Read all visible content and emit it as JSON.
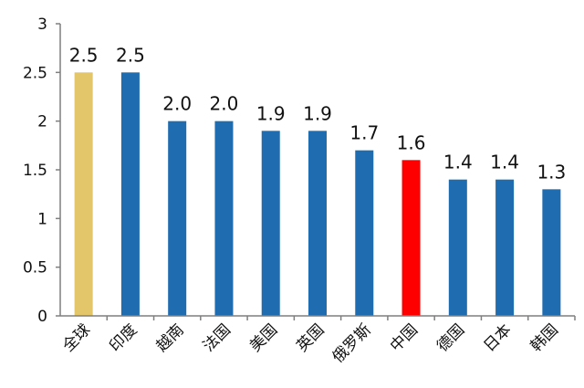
{
  "chart_data": {
    "type": "bar",
    "title": "",
    "xlabel": "",
    "ylabel": "",
    "ylim": [
      0,
      3
    ],
    "yticks": [
      0,
      0.5,
      1,
      1.5,
      2,
      2.5,
      3
    ],
    "ytick_labels": [
      "0",
      "0.5",
      "1",
      "1.5",
      "2",
      "2.5",
      "3"
    ],
    "grid": false,
    "legend": "none",
    "categories": [
      "全球",
      "印度",
      "越南",
      "法国",
      "美国",
      "英国",
      "俄罗斯",
      "中国",
      "德国",
      "日本",
      "韩国"
    ],
    "values": [
      2.5,
      2.5,
      2.0,
      2.0,
      1.9,
      1.9,
      1.7,
      1.6,
      1.4,
      1.4,
      1.3
    ],
    "data_labels": [
      "2.5",
      "2.5",
      "2.0",
      "2.0",
      "1.9",
      "1.9",
      "1.7",
      "1.6",
      "1.4",
      "1.4",
      "1.3"
    ],
    "bar_colors": [
      "#E3C56A",
      "#1F6CB0",
      "#1F6CB0",
      "#1F6CB0",
      "#1F6CB0",
      "#1F6CB0",
      "#1F6CB0",
      "#FF0000",
      "#1F6CB0",
      "#1F6CB0",
      "#1F6CB0"
    ],
    "axis_color": "#7F7F7F"
  }
}
